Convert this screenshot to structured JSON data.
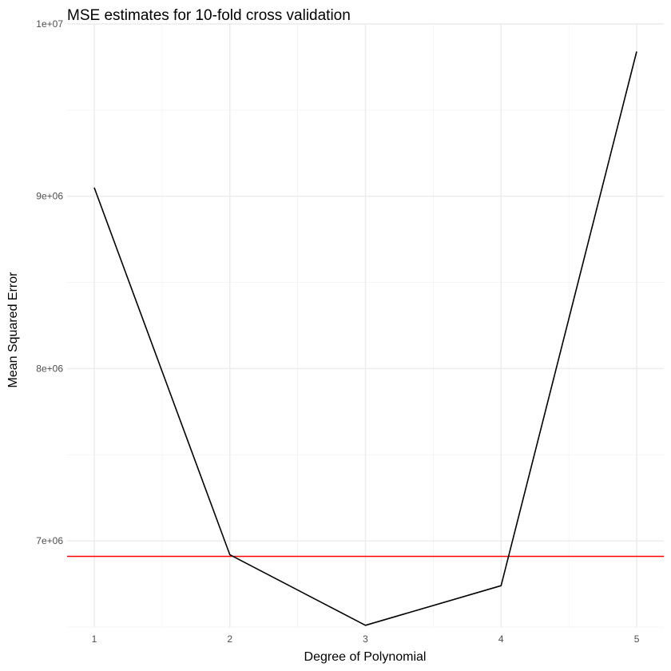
{
  "chart_data": {
    "type": "line",
    "title": "MSE estimates for 10-fold cross validation",
    "xlabel": "Degree of Polynomial",
    "ylabel": "Mean Squared Error",
    "xlim": [
      0.8,
      5.2
    ],
    "ylim": [
      6500000,
      10000000
    ],
    "x_ticks": [
      1,
      2,
      3,
      4,
      5
    ],
    "x_tick_labels": [
      "1",
      "2",
      "3",
      "4",
      "5"
    ],
    "y_ticks": [
      7000000,
      8000000,
      9000000,
      10000000
    ],
    "y_tick_labels": [
      "7e+06",
      "8e+06",
      "9e+06",
      "1e+07"
    ],
    "grid": true,
    "legend": "none",
    "series": [
      {
        "x": [
          1,
          2,
          3,
          4,
          5
        ],
        "y": [
          9050000,
          6920000,
          6510000,
          6740000,
          9840000
        ],
        "color": "#000000"
      }
    ],
    "reference_lines": [
      {
        "orientation": "horizontal",
        "y": 6910000,
        "color": "#ff0000"
      }
    ]
  }
}
